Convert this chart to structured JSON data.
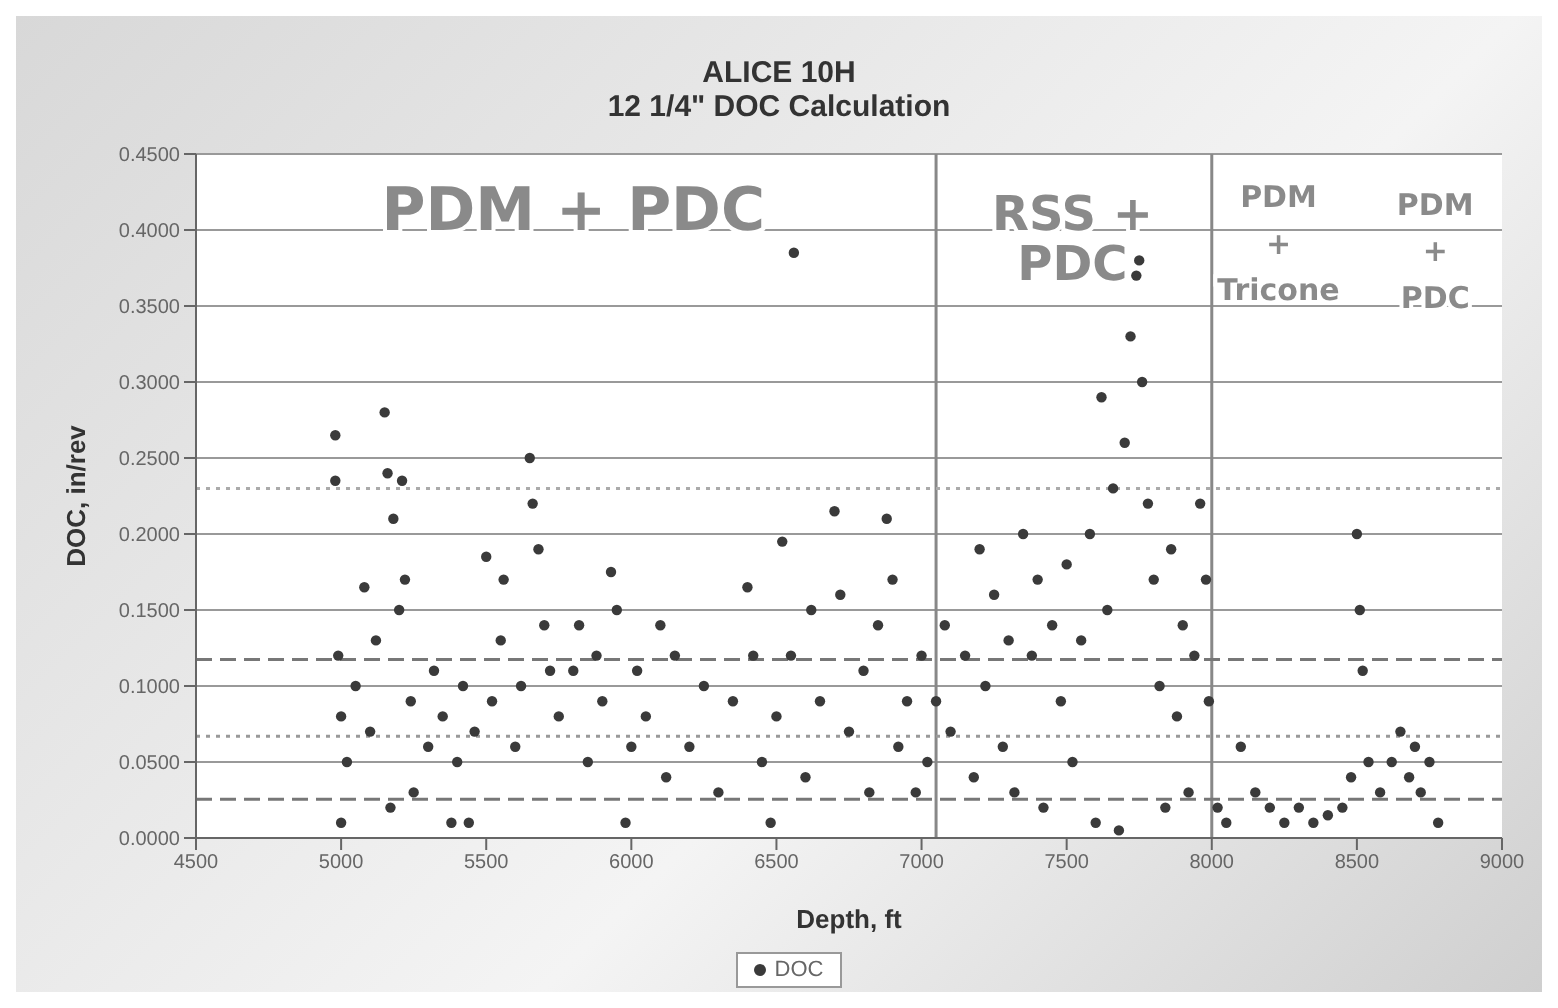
{
  "chart_data": {
    "type": "scatter",
    "title": "ALICE 10H",
    "subtitle": "12 1/4\" DOC Calculation",
    "xlabel": "Depth, ft",
    "ylabel": "DOC, in/rev",
    "xlim": [
      4500,
      9000
    ],
    "xticks": [
      4500,
      5000,
      5500,
      6000,
      6500,
      7000,
      7500,
      8000,
      8500,
      9000
    ],
    "ylim": [
      0,
      0.45
    ],
    "yticks": [
      {
        "value": 0,
        "label": "0.0000"
      },
      {
        "value": 0.05,
        "label": "0.0500"
      },
      {
        "value": 0.1,
        "label": "0.1000"
      },
      {
        "value": 0.15,
        "label": "0.1500"
      },
      {
        "value": 0.2,
        "label": "0.2000"
      },
      {
        "value": 0.25,
        "label": "0.2500"
      },
      {
        "value": 0.3,
        "label": "0.3000"
      },
      {
        "value": 0.35,
        "label": "0.3500"
      },
      {
        "value": 0.4,
        "label": "0.4000"
      },
      {
        "value": 0.45,
        "label": "0.4500"
      }
    ],
    "grid": "y",
    "legend": "bottom",
    "marker": "circle",
    "ref_lines": [
      {
        "axis": "x",
        "value": 7050,
        "color": "#888888",
        "line_style": "solid"
      },
      {
        "axis": "x",
        "value": 8000,
        "color": "#888888",
        "line_style": "solid"
      },
      {
        "axis": "y",
        "value": 0.1175,
        "color": "#777777",
        "line_style": "dashed"
      },
      {
        "axis": "y",
        "value": 0.067,
        "color": "#999999",
        "line_style": "dotted"
      },
      {
        "axis": "y",
        "value": 0.0255,
        "color": "#777777",
        "line_style": "dashed"
      },
      {
        "axis": "y",
        "value": 0.23,
        "color": "#aaaaaa",
        "line_style": "dotted"
      }
    ],
    "annotations": [
      "PDM + PDC",
      "RSS + PDC",
      "PDM + Tricone",
      "PDM + PDC"
    ],
    "series": [
      {
        "name": "DOC",
        "color": "#3a3a3a",
        "x": [
          4980,
          4980,
          4990,
          5000,
          5000,
          5020,
          5050,
          5080,
          5100,
          5120,
          5150,
          5160,
          5170,
          5180,
          5200,
          5210,
          5220,
          5240,
          5250,
          5300,
          5320,
          5350,
          5380,
          5400,
          5420,
          5440,
          5460,
          5500,
          5520,
          5550,
          5560,
          5600,
          5620,
          5650,
          5660,
          5680,
          5700,
          5720,
          5750,
          5800,
          5820,
          5850,
          5880,
          5900,
          5930,
          5950,
          5980,
          6000,
          6020,
          6050,
          6100,
          6120,
          6150,
          6200,
          6250,
          6300,
          6350,
          6400,
          6420,
          6450,
          6480,
          6500,
          6520,
          6550,
          6560,
          6600,
          6620,
          6650,
          6700,
          6720,
          6750,
          6800,
          6820,
          6850,
          6880,
          6900,
          6920,
          6950,
          6980,
          7000,
          7020,
          7050,
          7080,
          7100,
          7150,
          7180,
          7200,
          7220,
          7250,
          7280,
          7300,
          7320,
          7350,
          7380,
          7400,
          7420,
          7450,
          7480,
          7500,
          7520,
          7550,
          7580,
          7600,
          7620,
          7640,
          7660,
          7680,
          7700,
          7720,
          7740,
          7750,
          7760,
          7780,
          7800,
          7820,
          7840,
          7860,
          7880,
          7900,
          7920,
          7940,
          7960,
          7980,
          7990,
          8020,
          8050,
          8100,
          8150,
          8200,
          8250,
          8300,
          8350,
          8400,
          8450,
          8480,
          8500,
          8510,
          8520,
          8540,
          8580,
          8620,
          8650,
          8680,
          8700,
          8720,
          8750,
          8780
        ],
        "values": [
          0.265,
          0.235,
          0.12,
          0.08,
          0.01,
          0.05,
          0.1,
          0.165,
          0.07,
          0.13,
          0.28,
          0.24,
          0.02,
          0.21,
          0.15,
          0.235,
          0.17,
          0.09,
          0.03,
          0.06,
          0.11,
          0.08,
          0.01,
          0.05,
          0.1,
          0.01,
          0.07,
          0.185,
          0.09,
          0.13,
          0.17,
          0.06,
          0.1,
          0.25,
          0.22,
          0.19,
          0.14,
          0.11,
          0.08,
          0.11,
          0.14,
          0.05,
          0.12,
          0.09,
          0.175,
          0.15,
          0.01,
          0.06,
          0.11,
          0.08,
          0.14,
          0.04,
          0.12,
          0.06,
          0.1,
          0.03,
          0.09,
          0.165,
          0.12,
          0.05,
          0.01,
          0.08,
          0.195,
          0.12,
          0.385,
          0.04,
          0.15,
          0.09,
          0.215,
          0.16,
          0.07,
          0.11,
          0.03,
          0.14,
          0.21,
          0.17,
          0.06,
          0.09,
          0.03,
          0.12,
          0.05,
          0.09,
          0.14,
          0.07,
          0.12,
          0.04,
          0.19,
          0.1,
          0.16,
          0.06,
          0.13,
          0.03,
          0.2,
          0.12,
          0.17,
          0.02,
          0.14,
          0.09,
          0.18,
          0.05,
          0.13,
          0.2,
          0.01,
          0.29,
          0.15,
          0.23,
          0.005,
          0.26,
          0.33,
          0.37,
          0.38,
          0.3,
          0.22,
          0.17,
          0.1,
          0.02,
          0.19,
          0.08,
          0.14,
          0.03,
          0.12,
          0.22,
          0.17,
          0.09,
          0.02,
          0.01,
          0.06,
          0.03,
          0.02,
          0.01,
          0.02,
          0.01,
          0.015,
          0.02,
          0.04,
          0.2,
          0.15,
          0.11,
          0.05,
          0.03,
          0.05,
          0.07,
          0.04,
          0.06,
          0.03,
          0.05,
          0.01
        ]
      }
    ]
  }
}
